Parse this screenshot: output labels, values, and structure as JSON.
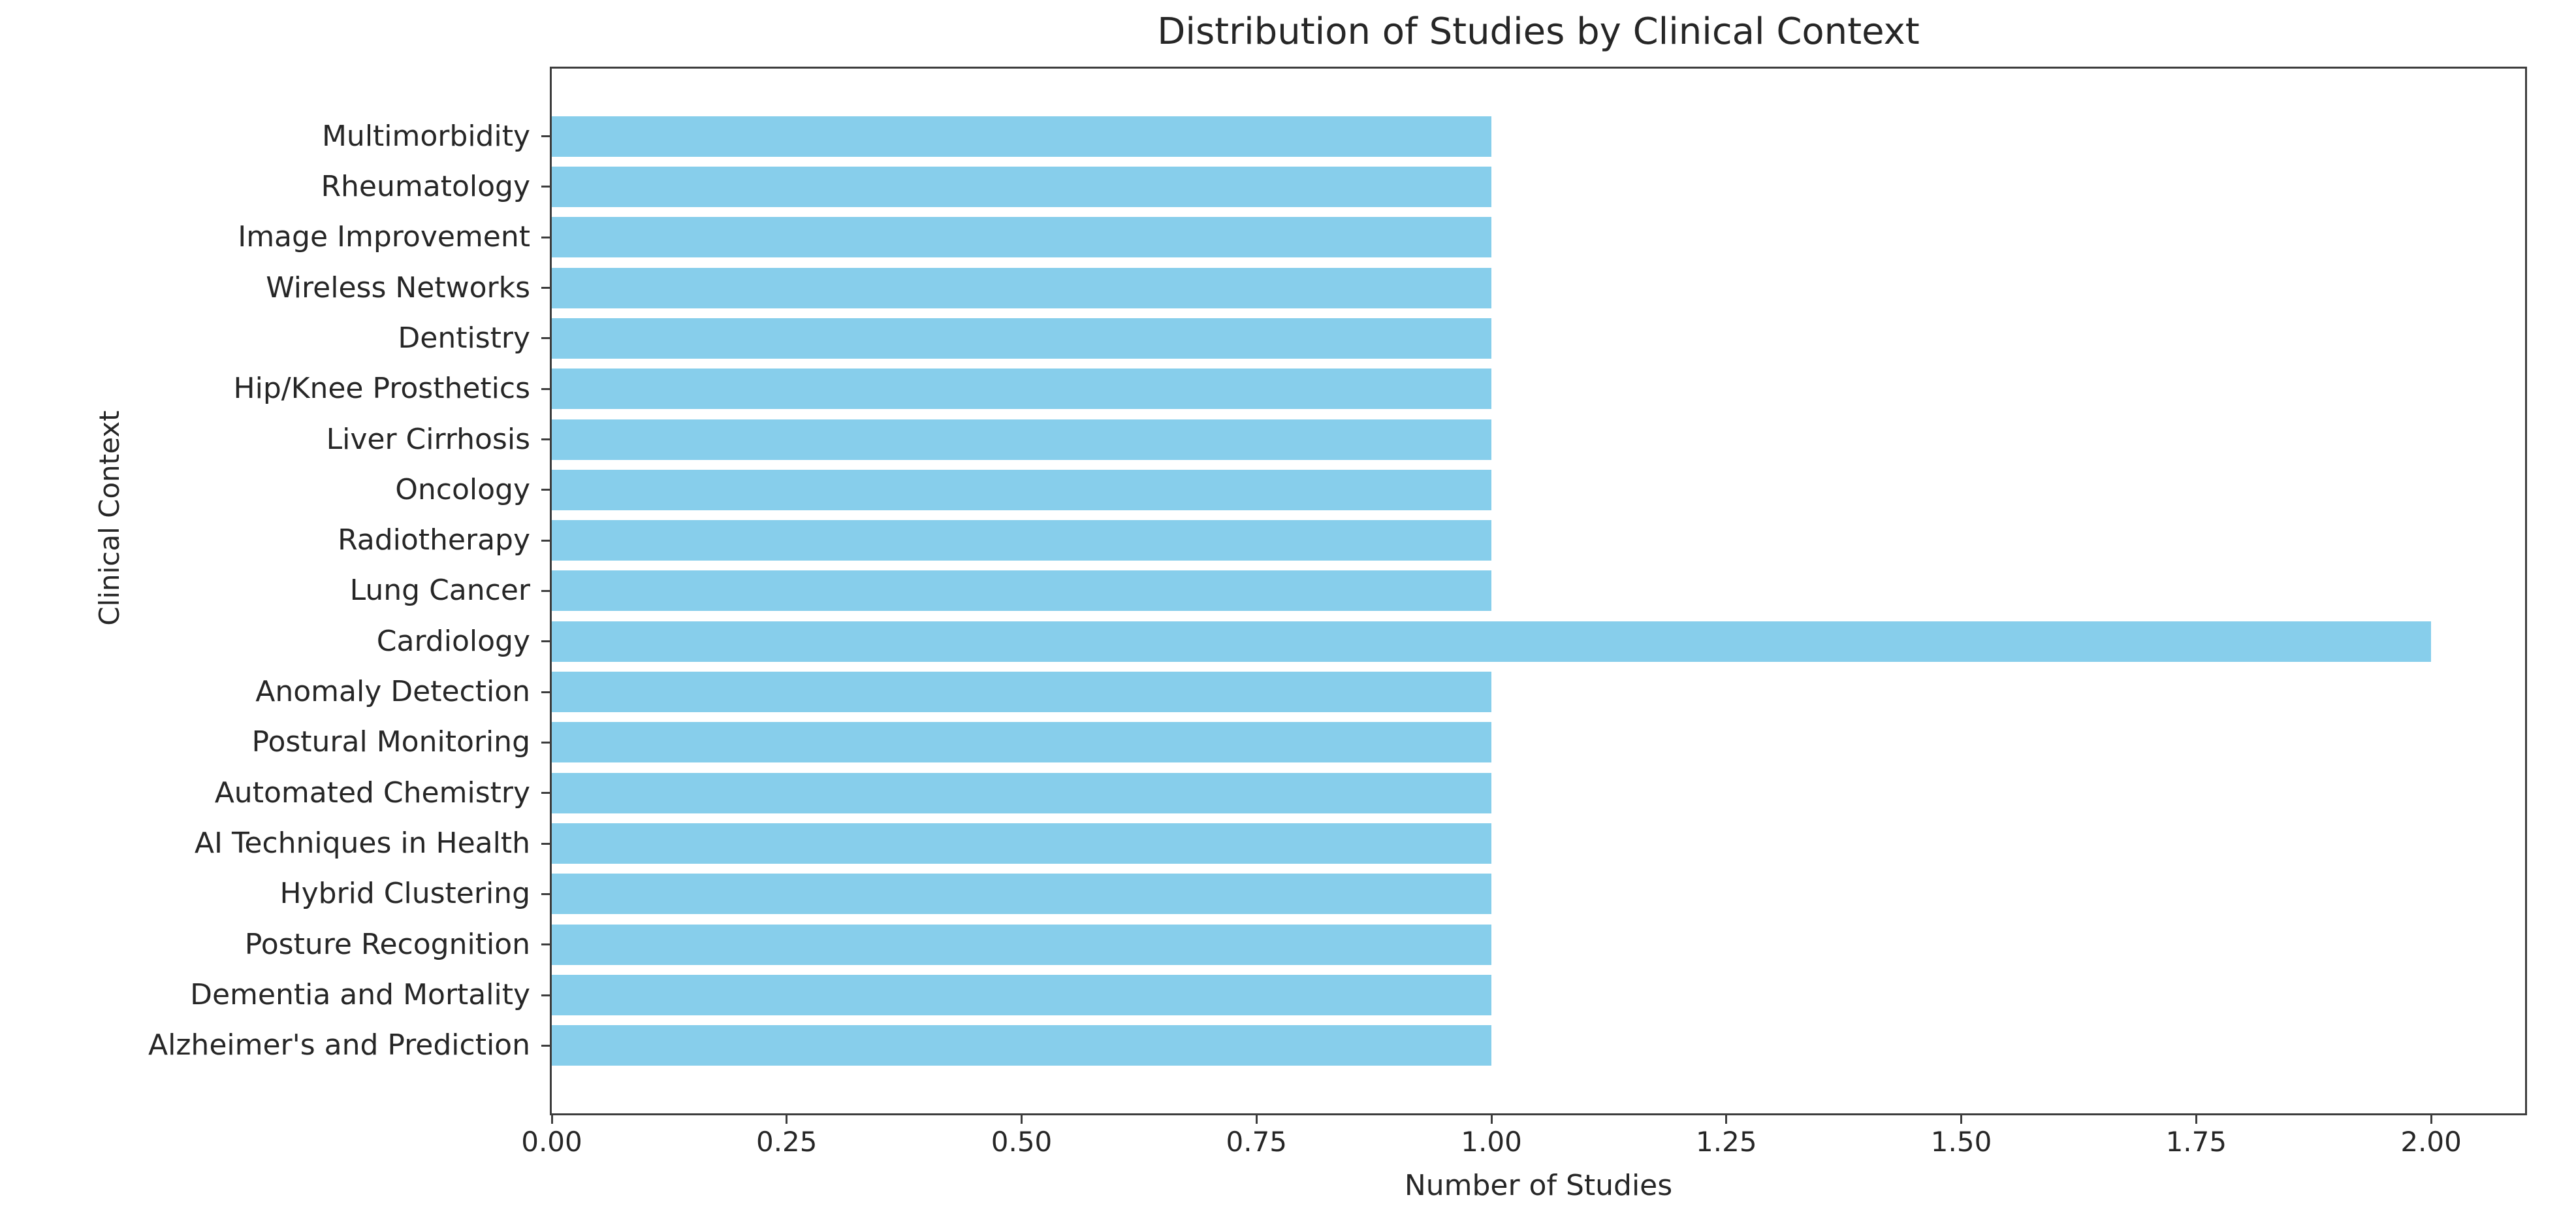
{
  "chart_data": {
    "type": "bar",
    "orientation": "horizontal",
    "title": "Distribution of Studies by Clinical Context",
    "xlabel": "Number of Studies",
    "ylabel": "Clinical Context",
    "categories": [
      "Multimorbidity",
      "Rheumatology",
      "Image Improvement",
      "Wireless Networks",
      "Dentistry",
      "Hip/Knee Prosthetics",
      "Liver Cirrhosis",
      "Oncology",
      "Radiotherapy",
      "Lung Cancer",
      "Cardiology",
      "Anomaly Detection",
      "Postural Monitoring",
      "Automated Chemistry",
      "AI Techniques in Health",
      "Hybrid Clustering",
      "Posture Recognition",
      "Dementia and Mortality",
      "Alzheimer's and Prediction"
    ],
    "values": [
      1,
      1,
      1,
      1,
      1,
      1,
      1,
      1,
      1,
      1,
      2,
      1,
      1,
      1,
      1,
      1,
      1,
      1,
      1
    ],
    "xlim": [
      0,
      2.1
    ],
    "xtick_values": [
      0.0,
      0.25,
      0.5,
      0.75,
      1.0,
      1.25,
      1.5,
      1.75,
      2.0
    ],
    "xtick_labels": [
      "0.00",
      "0.25",
      "0.50",
      "0.75",
      "1.00",
      "1.25",
      "1.50",
      "1.75",
      "2.00"
    ],
    "grid": false,
    "legend": null,
    "colors": {
      "bar": "#87CEEB",
      "axis": "#3d3d3d",
      "text": "#262626"
    }
  }
}
